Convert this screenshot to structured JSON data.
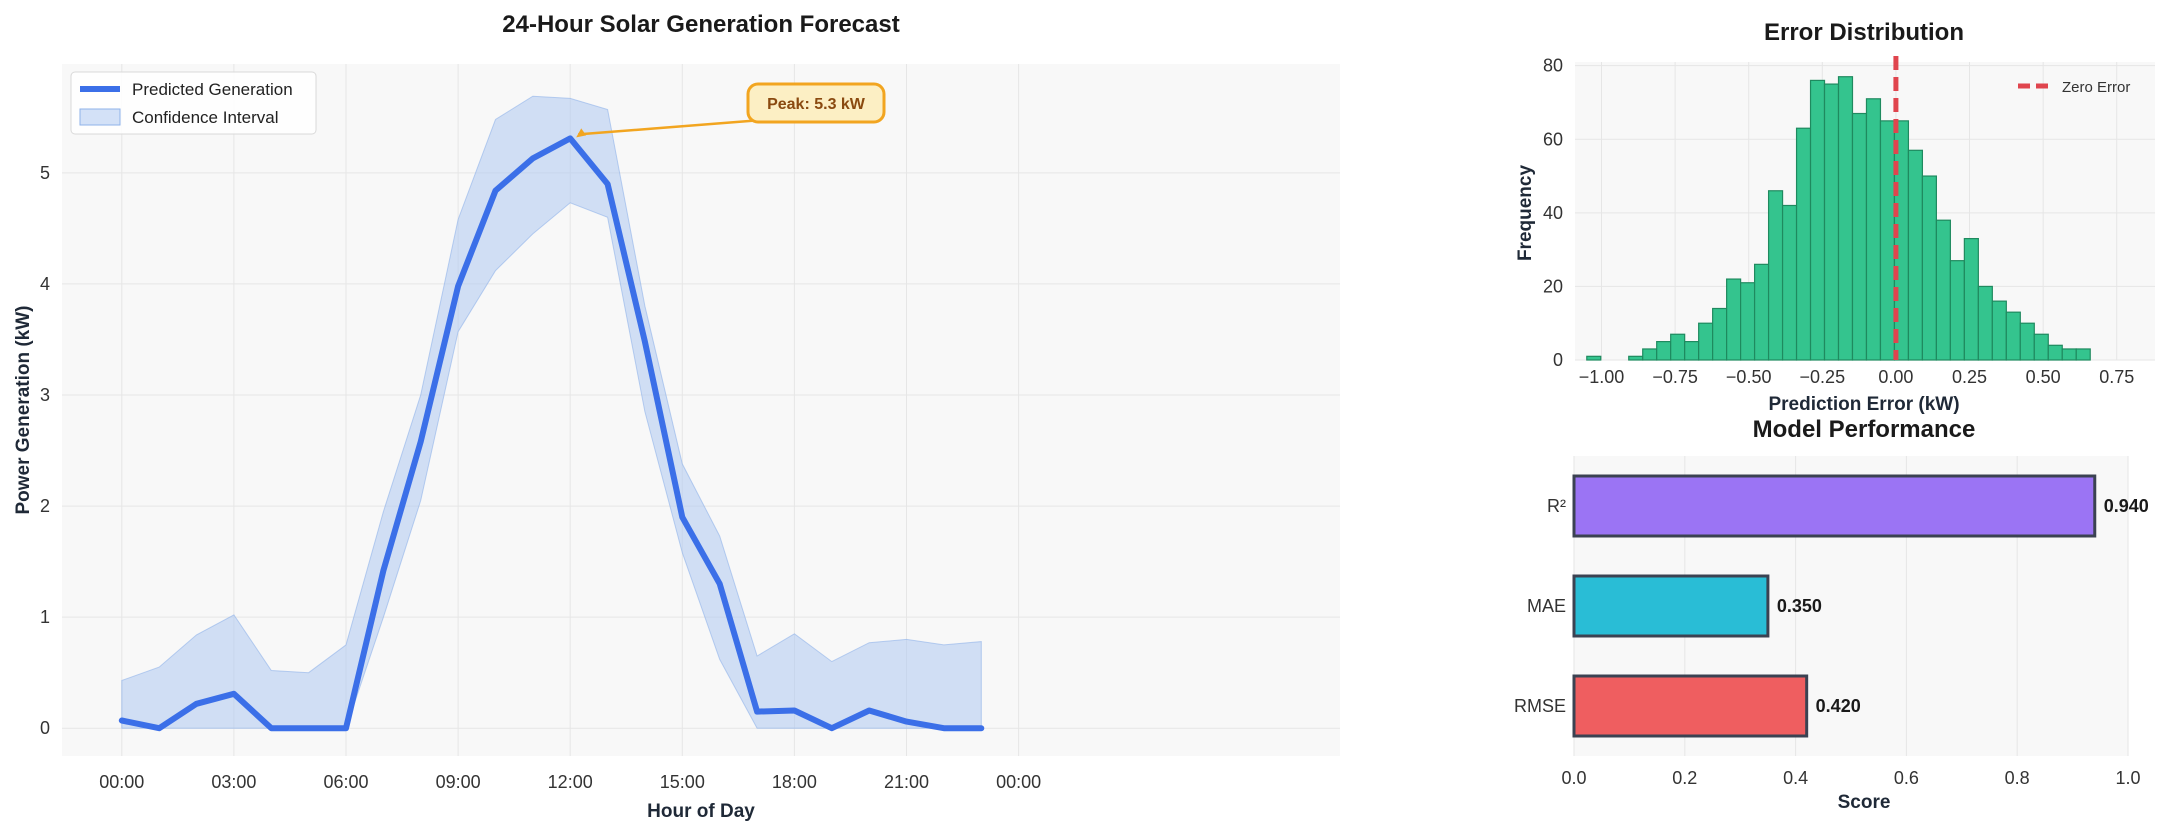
{
  "chart_data": [
    {
      "type": "line",
      "title": "24-Hour Solar Generation Forecast",
      "xlabel": "Hour of Day",
      "ylabel": "Power Generation (kW)",
      "xlim": [
        -1.6,
        32.6
      ],
      "ylim": [
        -0.25,
        5.98
      ],
      "xticks": [
        0,
        3,
        6,
        9,
        12,
        15,
        18,
        21,
        24
      ],
      "xtick_labels": [
        "00:00",
        "03:00",
        "06:00",
        "09:00",
        "12:00",
        "15:00",
        "18:00",
        "21:00",
        "00:00"
      ],
      "yticks": [
        0,
        1,
        2,
        3,
        4,
        5
      ],
      "grid": true,
      "legend_position": "top-left",
      "x": [
        0,
        1,
        2,
        3,
        4,
        5,
        6,
        7,
        8,
        9,
        10,
        11,
        12,
        13,
        14,
        15,
        16,
        17,
        18,
        19,
        20,
        21,
        22,
        23
      ],
      "series": [
        {
          "name": "Predicted Generation",
          "color": "#3b6fe8",
          "values": [
            0.07,
            0.0,
            0.22,
            0.31,
            0.0,
            0.0,
            0.0,
            1.42,
            2.58,
            3.98,
            4.84,
            5.13,
            5.31,
            4.9,
            3.48,
            1.9,
            1.3,
            0.15,
            0.16,
            0.0,
            0.16,
            0.06,
            0.0,
            0.0
          ]
        }
      ],
      "confidence_interval": {
        "name": "Confidence Interval",
        "color": "#aec8f0",
        "lower": [
          0.0,
          0.0,
          0.0,
          0.0,
          0.0,
          0.0,
          0.0,
          1.0,
          2.05,
          3.57,
          4.12,
          4.45,
          4.73,
          4.6,
          2.85,
          1.58,
          0.62,
          0.0,
          0.0,
          0.0,
          0.0,
          0.0,
          0.0,
          0.0
        ],
        "upper": [
          0.43,
          0.55,
          0.84,
          1.02,
          0.52,
          0.5,
          0.75,
          1.95,
          3.0,
          4.58,
          5.48,
          5.69,
          5.67,
          5.57,
          3.8,
          2.38,
          1.73,
          0.65,
          0.85,
          0.6,
          0.77,
          0.8,
          0.75,
          0.78
        ]
      },
      "annotation": {
        "text": "Peak: 5.3 kW",
        "x": 12,
        "y": 5.31
      }
    },
    {
      "type": "bar",
      "subtype": "histogram",
      "title": "Error Distribution",
      "xlabel": "Prediction Error (kW)",
      "ylabel": "Frequency",
      "xlim": [
        -1.09,
        0.88
      ],
      "ylim": [
        0,
        81
      ],
      "xticks": [
        -1.0,
        -0.75,
        -0.5,
        -0.25,
        0.0,
        0.25,
        0.5,
        0.75
      ],
      "xtick_labels": [
        "−1.00",
        "−0.75",
        "−0.50",
        "−0.25",
        "0.00",
        "0.25",
        "0.50",
        "0.75"
      ],
      "yticks": [
        0,
        20,
        40,
        60,
        80
      ],
      "grid": true,
      "color": "#34c48e",
      "bin_start": -1.05,
      "bin_width": 0.0475,
      "values": [
        1,
        0,
        0,
        1,
        3,
        5,
        7,
        5,
        10,
        14,
        22,
        21,
        26,
        46,
        42,
        63,
        76,
        75,
        77,
        67,
        71,
        65,
        65,
        57,
        50,
        38,
        27,
        33,
        20,
        16,
        13,
        10,
        7,
        4,
        3,
        3
      ],
      "reference_line": {
        "name": "Zero Error",
        "x": 0,
        "color": "#e0454e"
      },
      "legend_position": "top-right"
    },
    {
      "type": "bar",
      "orientation": "horizontal",
      "title": "Model Performance",
      "xlabel": "Score",
      "xlim": [
        0,
        1.0
      ],
      "xticks": [
        0.0,
        0.2,
        0.4,
        0.6,
        0.8,
        1.0
      ],
      "xtick_labels": [
        "0.0",
        "0.2",
        "0.4",
        "0.6",
        "0.8",
        "1.0"
      ],
      "grid": true,
      "categories": [
        "R²",
        "MAE",
        "RMSE"
      ],
      "values": [
        0.94,
        0.35,
        0.42
      ],
      "value_labels": [
        "0.940",
        "0.350",
        "0.420"
      ],
      "colors": [
        "#9b74f4",
        "#29bdd6",
        "#ef5e60"
      ]
    }
  ]
}
